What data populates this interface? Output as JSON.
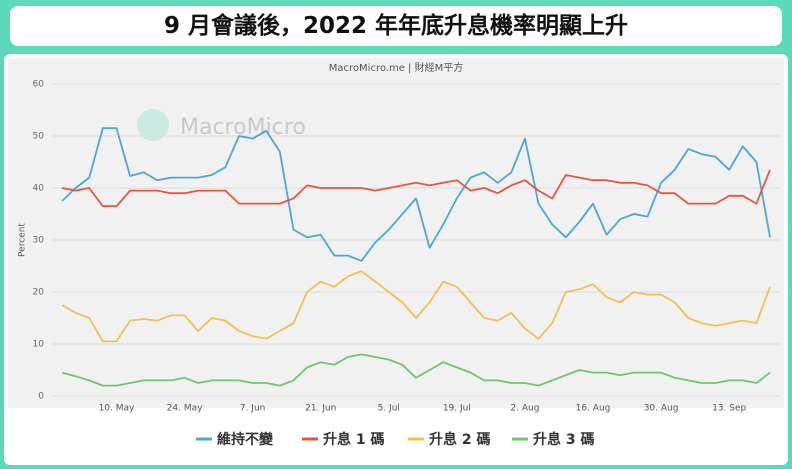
{
  "chart_data": {
    "type": "line",
    "title": "9 月會議後，2022 年年底升息機率明顯上升",
    "subtitle": "MacroMicro.me | 財經M平方",
    "watermark": "MacroMicro",
    "y_label": "Percent",
    "ylim": [
      0,
      60
    ],
    "yticks": [
      0,
      10,
      20,
      30,
      40,
      50,
      60
    ],
    "grid": true,
    "categories": [
      null,
      null,
      null,
      null,
      "10. May",
      null,
      null,
      null,
      null,
      "24. May",
      null,
      null,
      null,
      null,
      "7. Jun",
      null,
      null,
      null,
      null,
      "21. Jun",
      null,
      null,
      null,
      null,
      "5. Jul",
      null,
      null,
      null,
      null,
      "19. Jul",
      null,
      null,
      null,
      null,
      "2. Aug",
      null,
      null,
      null,
      null,
      "16. Aug",
      null,
      null,
      null,
      null,
      "30. Aug",
      null,
      null,
      null,
      null,
      "13. Sep",
      null,
      null,
      null
    ],
    "series": [
      {
        "name": "維持不變",
        "color": "#4aa7dc",
        "values": [
          37.5,
          40,
          42,
          51.5,
          51.5,
          42.3,
          43,
          41.5,
          42,
          42,
          42,
          42.5,
          44,
          50,
          49.5,
          51,
          47,
          32,
          30.5,
          31,
          27,
          27,
          26,
          29.5,
          32,
          35,
          38,
          28.5,
          33,
          38,
          42,
          43,
          41,
          43,
          49.5,
          37,
          33,
          30.5,
          33.5,
          37,
          31,
          34,
          35,
          34.5,
          41,
          43.5,
          47.5,
          46.5,
          46,
          43.5,
          48,
          45,
          30.5
        ]
      },
      {
        "name": "升息 1 碼",
        "color": "#e4573f",
        "values": [
          40,
          39.5,
          40,
          36.5,
          36.5,
          39.5,
          39.5,
          39.5,
          39,
          39,
          39.5,
          39.5,
          39.5,
          37,
          37,
          37,
          37,
          38,
          40.5,
          40,
          40,
          40,
          40,
          39.5,
          40,
          40.5,
          41,
          40.5,
          41,
          41.5,
          39.5,
          40,
          39,
          40.5,
          41.5,
          39.5,
          38,
          42.5,
          42,
          41.5,
          41.5,
          41,
          41,
          40.5,
          39,
          39,
          37,
          37,
          37,
          38.5,
          38.5,
          37,
          43.5
        ]
      },
      {
        "name": "升息 2 碼",
        "color": "#f4bf4f",
        "values": [
          17.5,
          16,
          15,
          10.5,
          10.5,
          14.5,
          14.8,
          14.5,
          15.5,
          15.5,
          12.5,
          15,
          14.5,
          12.5,
          11.5,
          11,
          12.5,
          14,
          20,
          22,
          21,
          23,
          24,
          22,
          20,
          18,
          15,
          18,
          22,
          21,
          18,
          15,
          14.5,
          16,
          13,
          11,
          14,
          20,
          20.5,
          21.5,
          19,
          18,
          20,
          19.5,
          19.5,
          18,
          15,
          14,
          13.5,
          14,
          14.5,
          14,
          21
        ]
      },
      {
        "name": "升息 3 碼",
        "color": "#6cc86a",
        "values": [
          4.5,
          3.8,
          3,
          2,
          2,
          2.5,
          3,
          3,
          3,
          3.5,
          2.5,
          3,
          3,
          3,
          2.5,
          2.5,
          2,
          3,
          5.5,
          6.5,
          6,
          7.5,
          8,
          7.5,
          7,
          6,
          3.5,
          5,
          6.5,
          5.5,
          4.5,
          3,
          3,
          2.5,
          2.5,
          2,
          3,
          4,
          5,
          4.5,
          4.5,
          4,
          4.5,
          4.5,
          4.5,
          3.5,
          3,
          2.5,
          2.5,
          3,
          3,
          2.5,
          4.5
        ]
      }
    ]
  }
}
